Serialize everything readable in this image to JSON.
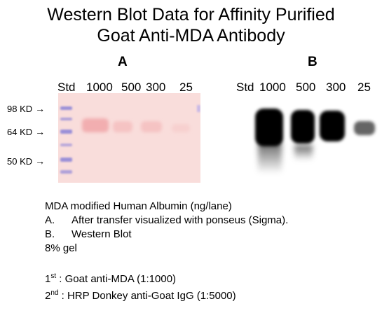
{
  "title": {
    "line1": "Western Blot Data for Affinity Purified",
    "line2": "Goat Anti-MDA Antibody"
  },
  "panels": {
    "a": {
      "label": "A",
      "lanes": [
        "Std",
        "1000",
        "500",
        "300",
        "25"
      ]
    },
    "b": {
      "label": "B",
      "lanes": [
        "Std",
        "1000",
        "500",
        "300",
        "25"
      ]
    }
  },
  "markers": [
    "98 KD",
    "64 KD",
    "50 KD"
  ],
  "arrow": "→",
  "notes": {
    "line1": "MDA modified Human Albumin (ng/lane)",
    "a_letter": "A.",
    "a_text": "After transfer visualized with ponseus (Sigma).",
    "b_letter": "B.",
    "b_text": "Western Blot",
    "gel": "8% gel",
    "first_num": "1",
    "first_sup": "st",
    "first_text": " : Goat anti-MDA (1:1000)",
    "second_num": "2",
    "second_sup": "nd",
    "second_text": " : HRP Donkey anti-Goat IgG (1:5000)"
  },
  "colors": {
    "gel_a_background": "#f9dddb",
    "ladder_band": "#9a8fd8",
    "ponceau_band": "#f5bfbf",
    "western_band": "#000000"
  }
}
